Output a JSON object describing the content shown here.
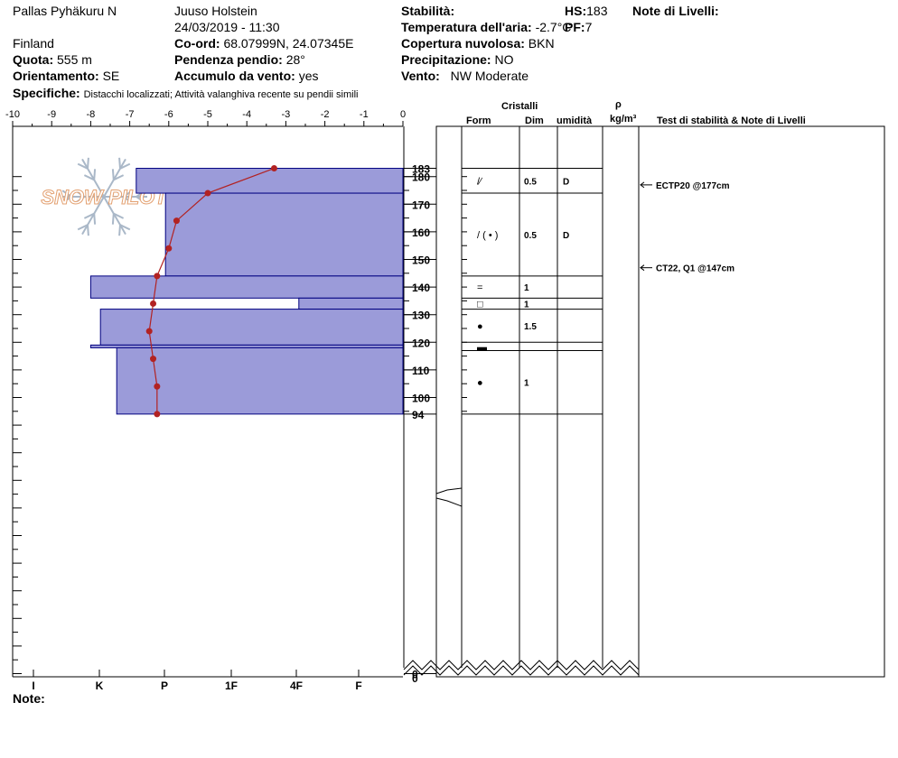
{
  "header": {
    "location": "Pallas Pyhäkuru N",
    "country": "Finland",
    "observer": "Juuso Holstein",
    "datetime": "24/03/2019 - 11:30",
    "elevation_label": "Quota:",
    "elevation_value": "555 m",
    "aspect_label": "Orientamento:",
    "aspect_value": "SE",
    "coords_label": "Co-ord:",
    "coords_value": "68.07999N, 24.07345E",
    "slope_label": "Pendenza pendio:",
    "slope_value": "28°",
    "wind_loading_label": "Accumulo da vento:",
    "wind_loading_value": "yes",
    "specifics_label": "Specifiche:",
    "specifics_value": "Distacchi localizzati;  Attività valanghiva recente su pendii simili",
    "stability_label": "Stabilità:",
    "air_temp_label": "Temperatura dell'aria:",
    "air_temp_value": "-2.7°C",
    "sky_label": "Copertura nuvolosa:",
    "sky_value": "BKN",
    "precip_label": "Precipitazione:",
    "precip_value": "NO",
    "wind_label": "Vento:",
    "wind_value": "NW Moderate",
    "hs_label": "HS:",
    "hs_value": "183",
    "pf_label": "PF:",
    "pf_value": "7",
    "layer_notes_label": "Note di Livelli:",
    "notes_label": "Note:"
  },
  "watermark": {
    "text": "SNOW PILOT"
  },
  "table_headers": {
    "crystals": "Cristalli",
    "form": "Form",
    "size": "Dim",
    "moisture": "umidità",
    "density_symbol": "ρ",
    "density_unit": "kg/m³",
    "tests": "Test di stabilità & Note di Livelli"
  },
  "colors": {
    "hardness_fill": "#9b9bd9",
    "hardness_stroke": "#000080",
    "temperature_line": "#b22222",
    "temperature_point": "#b22222",
    "grid": "#000000"
  },
  "chart_data": {
    "type": "snow-profile",
    "temperature_axis": {
      "min": -10,
      "max": 0,
      "ticks": [
        "-10",
        "-9",
        "-8",
        "-7",
        "-6",
        "-5",
        "-4",
        "-3",
        "-2",
        "-1",
        "0"
      ]
    },
    "height_axis": {
      "min": 0,
      "max": 183,
      "ticks": [
        "183",
        "180",
        "170",
        "160",
        "150",
        "140",
        "130",
        "120",
        "110",
        "100",
        "94",
        "0"
      ]
    },
    "hardness_axis": {
      "ticks": [
        "I",
        "K",
        "P",
        "1F",
        "4F",
        "F"
      ]
    },
    "hardness_layers": [
      {
        "top": 183,
        "bottom": 174,
        "hardness": 4.1
      },
      {
        "top": 174,
        "bottom": 144,
        "hardness": 3.65
      },
      {
        "top": 144,
        "bottom": 136,
        "hardness": 4.8
      },
      {
        "top": 136,
        "bottom": 132,
        "hardness": 1.6
      },
      {
        "top": 132,
        "bottom": 119,
        "hardness": 4.65
      },
      {
        "top": 119,
        "bottom": 118,
        "hardness": 4.8
      },
      {
        "top": 118,
        "bottom": 94,
        "hardness": 4.4
      }
    ],
    "temperature_profile": [
      {
        "height": 183,
        "temp": -3.3
      },
      {
        "height": 174,
        "temp": -5.0
      },
      {
        "height": 164,
        "temp": -5.8
      },
      {
        "height": 154,
        "temp": -6.0
      },
      {
        "height": 144,
        "temp": -6.3
      },
      {
        "height": 134,
        "temp": -6.4
      },
      {
        "height": 124,
        "temp": -6.5
      },
      {
        "height": 114,
        "temp": -6.4
      },
      {
        "height": 104,
        "temp": -6.3
      },
      {
        "height": 94,
        "temp": -6.3
      }
    ],
    "layers": [
      {
        "top": 183,
        "bottom": 174,
        "form": "/∕",
        "size": "0.5",
        "moisture": "D"
      },
      {
        "top": 174,
        "bottom": 144,
        "form": "/ ( • )",
        "size": "0.5",
        "moisture": "D"
      },
      {
        "top": 144,
        "bottom": 136,
        "form": "=",
        "size": "1",
        "moisture": ""
      },
      {
        "top": 136,
        "bottom": 132,
        "form": "□",
        "size": "1",
        "moisture": ""
      },
      {
        "top": 132,
        "bottom": 120,
        "form": "●",
        "size": "1.5",
        "moisture": ""
      },
      {
        "top": 120,
        "bottom": 117,
        "form": "▬",
        "size": "",
        "moisture": ""
      },
      {
        "top": 117,
        "bottom": 94,
        "form": "●",
        "size": "1",
        "moisture": ""
      }
    ],
    "tests": [
      {
        "height": 177,
        "label": "ECTP20 @177cm"
      },
      {
        "height": 147,
        "label": "CT22, Q1 @147cm"
      }
    ]
  }
}
